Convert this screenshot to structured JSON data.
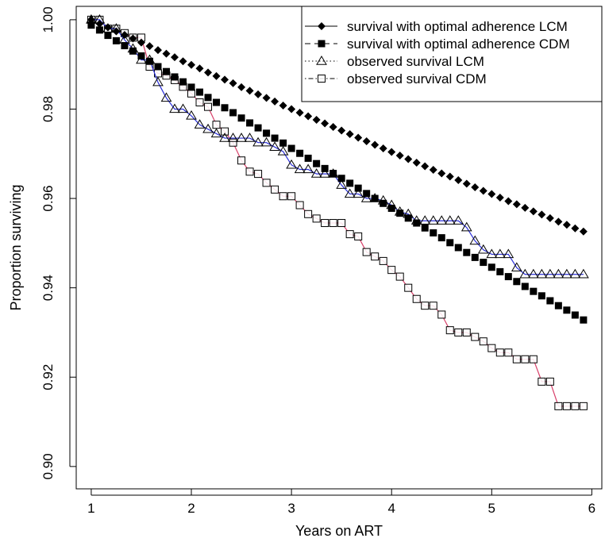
{
  "chart_data": {
    "type": "line",
    "title": "",
    "xlabel": "Years on ART",
    "ylabel": "Proportion surviving",
    "xlim": [
      0.85,
      6.1
    ],
    "ylim": [
      0.895,
      1.003
    ],
    "xticks": [
      "1",
      "2",
      "3",
      "4",
      "5",
      "6"
    ],
    "yticks": [
      "0.90",
      "0.92",
      "0.94",
      "0.96",
      "0.98",
      "1.00"
    ],
    "grid": false,
    "legend_position": "top-right",
    "series": [
      {
        "name": "survival with optimal adherence LCM",
        "marker": "diamond",
        "line": "solid",
        "color": "#000000",
        "x": [
          1.0,
          1.0833,
          1.1667,
          1.25,
          1.3333,
          1.4167,
          1.5,
          1.5833,
          1.6667,
          1.75,
          1.8333,
          1.9167,
          2.0,
          2.0833,
          2.1667,
          2.25,
          2.3333,
          2.4167,
          2.5,
          2.5833,
          2.6667,
          2.75,
          2.8333,
          2.9167,
          3.0,
          3.0833,
          3.1667,
          3.25,
          3.3333,
          3.4167,
          3.5,
          3.5833,
          3.6667,
          3.75,
          3.8333,
          3.9167,
          4.0,
          4.0833,
          4.1667,
          4.25,
          4.3333,
          4.4167,
          4.5,
          4.5833,
          4.6667,
          4.75,
          4.8333,
          4.9167,
          5.0,
          5.0833,
          5.1667,
          5.25,
          5.3333,
          5.4167,
          5.5,
          5.5833,
          5.6667,
          5.75,
          5.8333,
          5.9167
        ],
        "y": [
          1.0,
          0.9991,
          0.9983,
          0.9974,
          0.9966,
          0.9958,
          0.9949,
          0.9941,
          0.9932,
          0.9924,
          0.9916,
          0.9907,
          0.9899,
          0.9891,
          0.9882,
          0.9874,
          0.9866,
          0.9858,
          0.9849,
          0.9841,
          0.9833,
          0.9825,
          0.9817,
          0.9808,
          0.98,
          0.9792,
          0.9784,
          0.9776,
          0.9768,
          0.976,
          0.9752,
          0.9744,
          0.9736,
          0.9728,
          0.972,
          0.9712,
          0.9704,
          0.9696,
          0.9688,
          0.968,
          0.9672,
          0.9664,
          0.9656,
          0.9649,
          0.9641,
          0.9633,
          0.9625,
          0.9617,
          0.961,
          0.9602,
          0.9594,
          0.9587,
          0.9579,
          0.9571,
          0.9564,
          0.9556,
          0.9548,
          0.9541,
          0.9533,
          0.9526
        ]
      },
      {
        "name": "survival with optimal adherence CDM",
        "marker": "square-filled",
        "line": "dashed",
        "color": "#000000",
        "x": [
          1.0,
          1.0833,
          1.1667,
          1.25,
          1.3333,
          1.4167,
          1.5,
          1.5833,
          1.6667,
          1.75,
          1.8333,
          1.9167,
          2.0,
          2.0833,
          2.1667,
          2.25,
          2.3333,
          2.4167,
          2.5,
          2.5833,
          2.6667,
          2.75,
          2.8333,
          2.9167,
          3.0,
          3.0833,
          3.1667,
          3.25,
          3.3333,
          3.4167,
          3.5,
          3.5833,
          3.6667,
          3.75,
          3.8333,
          3.9167,
          4.0,
          4.0833,
          4.1667,
          4.25,
          4.3333,
          4.4167,
          4.5,
          4.5833,
          4.6667,
          4.75,
          4.8333,
          4.9167,
          5.0,
          5.0833,
          5.1667,
          5.25,
          5.3333,
          5.4167,
          5.5,
          5.5833,
          5.6667,
          5.75,
          5.8333,
          5.9167
        ],
        "y": [
          0.9988,
          0.9977,
          0.9965,
          0.9953,
          0.9942,
          0.993,
          0.9919,
          0.9907,
          0.9895,
          0.9884,
          0.9872,
          0.9861,
          0.9849,
          0.9838,
          0.9826,
          0.9815,
          0.9803,
          0.9792,
          0.978,
          0.9769,
          0.9758,
          0.9746,
          0.9735,
          0.9724,
          0.9712,
          0.9701,
          0.969,
          0.9678,
          0.9667,
          0.9656,
          0.9645,
          0.9634,
          0.9623,
          0.9611,
          0.96,
          0.9589,
          0.9578,
          0.9567,
          0.9556,
          0.9545,
          0.9534,
          0.9523,
          0.9512,
          0.9501,
          0.949,
          0.9479,
          0.9468,
          0.9457,
          0.9446,
          0.9436,
          0.9425,
          0.9414,
          0.9403,
          0.9392,
          0.9382,
          0.9371,
          0.936,
          0.935,
          0.9339,
          0.9328
        ]
      },
      {
        "name": "observed survival LCM",
        "marker": "triangle-open",
        "line": "dotted",
        "color": "#000000",
        "line_color": "#2a2fd8",
        "x": [
          1.0,
          1.0833,
          1.1667,
          1.25,
          1.3333,
          1.4167,
          1.5,
          1.5833,
          1.6667,
          1.75,
          1.8333,
          1.9167,
          2.0,
          2.0833,
          2.1667,
          2.25,
          2.3333,
          2.4167,
          2.5,
          2.5833,
          2.6667,
          2.75,
          2.8333,
          2.9167,
          3.0,
          3.0833,
          3.1667,
          3.25,
          3.3333,
          3.4167,
          3.5,
          3.5833,
          3.6667,
          3.75,
          3.8333,
          3.9167,
          4.0,
          4.0833,
          4.1667,
          4.25,
          4.3333,
          4.4167,
          4.5,
          4.5833,
          4.6667,
          4.75,
          4.8333,
          4.9167,
          5.0,
          5.0833,
          5.1667,
          5.25,
          5.3333,
          5.4167,
          5.5,
          5.5833,
          5.6667,
          5.75,
          5.8333,
          5.9167
        ],
        "y": [
          1.0,
          1.0,
          0.998,
          0.998,
          0.9955,
          0.9935,
          0.991,
          0.991,
          0.986,
          0.9825,
          0.98,
          0.98,
          0.9785,
          0.9765,
          0.9755,
          0.9745,
          0.9735,
          0.9735,
          0.9735,
          0.9735,
          0.9725,
          0.9725,
          0.9715,
          0.9705,
          0.9675,
          0.9665,
          0.9665,
          0.9655,
          0.9655,
          0.9655,
          0.963,
          0.961,
          0.961,
          0.96,
          0.96,
          0.9595,
          0.9585,
          0.957,
          0.9565,
          0.955,
          0.955,
          0.955,
          0.955,
          0.955,
          0.955,
          0.9535,
          0.9505,
          0.9485,
          0.9475,
          0.9475,
          0.9475,
          0.9445,
          0.943,
          0.943,
          0.943,
          0.943,
          0.943,
          0.943,
          0.943,
          0.943
        ]
      },
      {
        "name": "observed survival CDM",
        "marker": "square-open",
        "line": "dotdash",
        "color": "#000000",
        "line_color": "#d8406a",
        "x": [
          1.0,
          1.0833,
          1.1667,
          1.25,
          1.3333,
          1.4167,
          1.5,
          1.5833,
          1.6667,
          1.75,
          1.8333,
          1.9167,
          2.0,
          2.0833,
          2.1667,
          2.25,
          2.3333,
          2.4167,
          2.5,
          2.5833,
          2.6667,
          2.75,
          2.8333,
          2.9167,
          3.0,
          3.0833,
          3.1667,
          3.25,
          3.3333,
          3.4167,
          3.5,
          3.5833,
          3.6667,
          3.75,
          3.8333,
          3.9167,
          4.0,
          4.0833,
          4.1667,
          4.25,
          4.3333,
          4.4167,
          4.5,
          4.5833,
          4.6667,
          4.75,
          4.8333,
          4.9167,
          5.0,
          5.0833,
          5.1667,
          5.25,
          5.3333,
          5.4167,
          5.5,
          5.5833,
          5.6667,
          5.75,
          5.8333,
          5.9167
        ],
        "y": [
          1.0,
          1.0,
          0.998,
          0.998,
          0.997,
          0.996,
          0.996,
          0.9895,
          0.988,
          0.9875,
          0.9865,
          0.985,
          0.9835,
          0.9815,
          0.9805,
          0.9765,
          0.975,
          0.9725,
          0.9685,
          0.966,
          0.9655,
          0.9635,
          0.962,
          0.9605,
          0.9605,
          0.9585,
          0.9565,
          0.9555,
          0.9545,
          0.9545,
          0.9545,
          0.952,
          0.9515,
          0.948,
          0.947,
          0.946,
          0.944,
          0.9425,
          0.94,
          0.9375,
          0.936,
          0.936,
          0.934,
          0.9305,
          0.93,
          0.93,
          0.929,
          0.928,
          0.9265,
          0.9255,
          0.9255,
          0.924,
          0.924,
          0.924,
          0.919,
          0.919,
          0.9135,
          0.9135,
          0.9135,
          0.9135
        ]
      }
    ]
  }
}
